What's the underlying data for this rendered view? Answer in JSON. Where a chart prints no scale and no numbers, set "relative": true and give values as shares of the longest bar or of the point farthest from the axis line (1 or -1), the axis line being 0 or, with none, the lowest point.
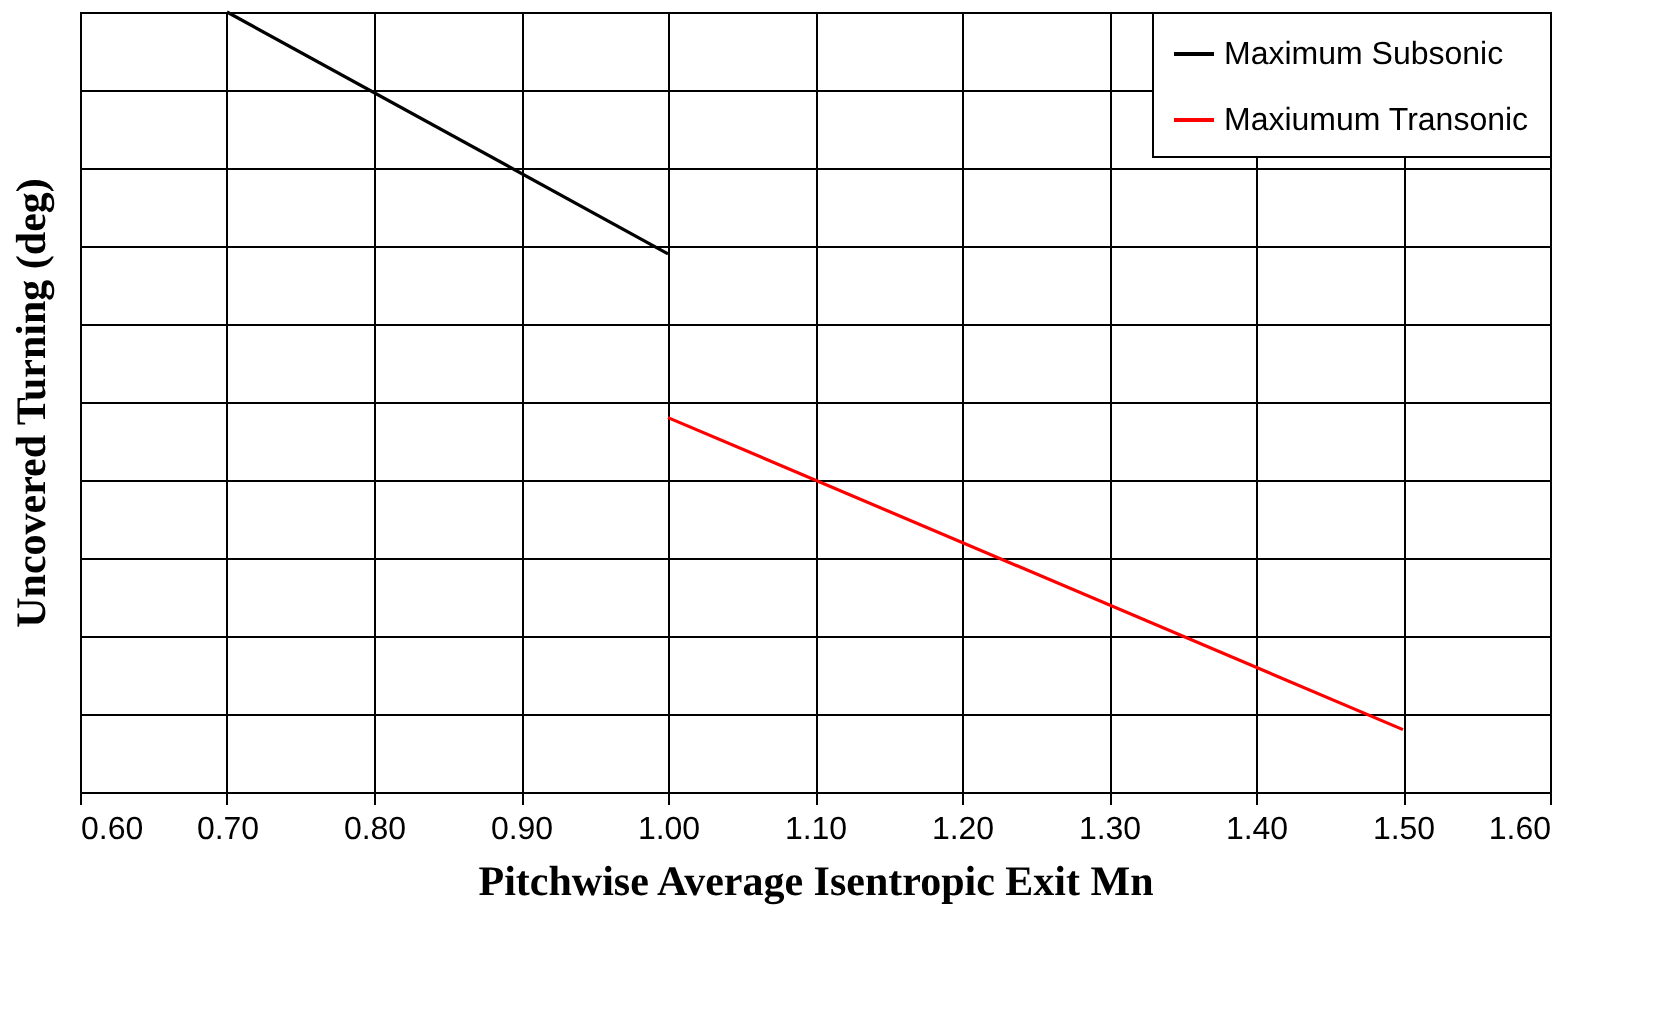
{
  "chart_data": {
    "type": "line",
    "xlabel": "Pitchwise Average Isentropic Exit Mn",
    "ylabel": "Uncovered Turning (deg)",
    "relative": true,
    "xlim": [
      0.6,
      1.6
    ],
    "xticks": [
      {
        "value": 0.6,
        "label": "0.60"
      },
      {
        "value": 0.7,
        "label": "0.70"
      },
      {
        "value": 0.8,
        "label": "0.80"
      },
      {
        "value": 0.9,
        "label": "0.90"
      },
      {
        "value": 1.0,
        "label": "1.00"
      },
      {
        "value": 1.1,
        "label": "1.10"
      },
      {
        "value": 1.2,
        "label": "1.20"
      },
      {
        "value": 1.3,
        "label": "1.30"
      },
      {
        "value": 1.4,
        "label": "1.40"
      },
      {
        "value": 1.5,
        "label": "1.50"
      },
      {
        "value": 1.6,
        "label": "1.60"
      }
    ],
    "series": [
      {
        "name": "Maximum Subsonic",
        "color": "#000000",
        "x": [
          0.7,
          1.0
        ],
        "values": [
          1,
          0.69
        ]
      },
      {
        "name": "Maxiumum Transonic",
        "color": "#ff0000",
        "x": [
          1.0,
          1.5
        ],
        "values": [
          0.48,
          0.08
        ]
      }
    ],
    "grid": true,
    "legend": "top right",
    "line_style": "solid",
    "marker": "none"
  }
}
